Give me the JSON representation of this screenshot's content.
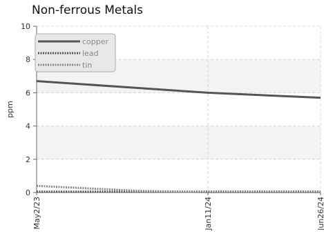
{
  "chart_data": {
    "type": "line",
    "title": "Non-ferrous Metals",
    "xlabel": "",
    "ylabel": "ppm",
    "x": [
      "May2/23",
      "Jan11/24",
      "Jun26/24"
    ],
    "x_days_domain": [
      "2023-05-02",
      "2024-06-26"
    ],
    "ylim": [
      0,
      10
    ],
    "y_ticks": [
      0,
      2,
      4,
      6,
      8,
      10
    ],
    "x_tick_labels": [
      "May2/23",
      "Jan11/24",
      "Jun26/24"
    ],
    "grid": true,
    "legend_position": "top-left",
    "series": [
      {
        "name": "copper",
        "x": [
          "2023-05-02",
          "2024-01-11",
          "2024-06-26"
        ],
        "values": [
          6.7,
          6.0,
          5.7
        ],
        "color": "#555555",
        "style": "solid"
      },
      {
        "name": "lead",
        "x": [
          "2023-05-02",
          "2024-01-11",
          "2024-06-26"
        ],
        "values": [
          0.05,
          0.05,
          0.05
        ],
        "color": "#555555",
        "style": "dotted"
      },
      {
        "name": "tin",
        "x": [
          "2023-05-02",
          "2023-10-01",
          "2024-01-11",
          "2024-06-26"
        ],
        "values": [
          0.4,
          0.1,
          0.02,
          0.02
        ],
        "color": "#888888",
        "style": "dotted"
      }
    ]
  }
}
